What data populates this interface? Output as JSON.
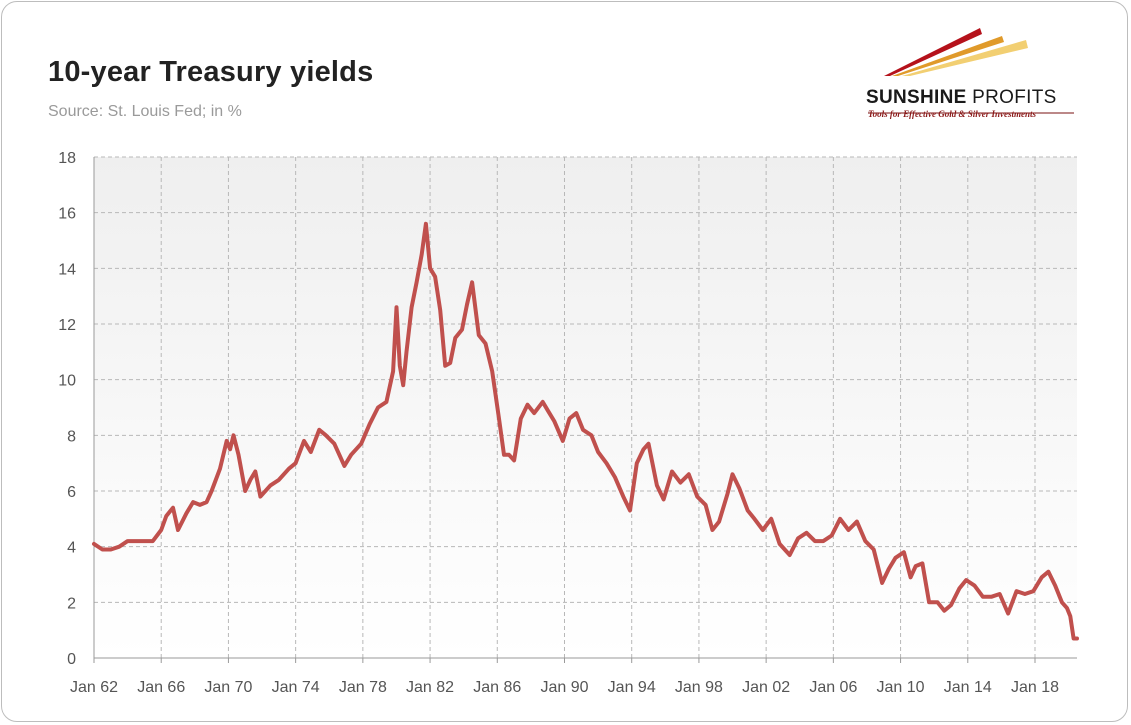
{
  "chart_data": {
    "type": "line",
    "title": "10-year Treasury yields",
    "subtitle": "Source: St. Louis Fed; in %",
    "xlabel": "",
    "ylabel": "",
    "ylim": [
      0,
      18
    ],
    "yticks": [
      0,
      2,
      4,
      6,
      8,
      10,
      12,
      14,
      16,
      18
    ],
    "x_range": [
      1962.0,
      2020.5
    ],
    "xticks": [
      {
        "x": 1962,
        "label": "Jan 62"
      },
      {
        "x": 1966,
        "label": "Jan 66"
      },
      {
        "x": 1970,
        "label": "Jan 70"
      },
      {
        "x": 1974,
        "label": "Jan 74"
      },
      {
        "x": 1978,
        "label": "Jan 78"
      },
      {
        "x": 1982,
        "label": "Jan 82"
      },
      {
        "x": 1986,
        "label": "Jan 86"
      },
      {
        "x": 1990,
        "label": "Jan 90"
      },
      {
        "x": 1994,
        "label": "Jan 94"
      },
      {
        "x": 1998,
        "label": "Jan 98"
      },
      {
        "x": 2002,
        "label": "Jan 02"
      },
      {
        "x": 2006,
        "label": "Jan 06"
      },
      {
        "x": 2010,
        "label": "Jan 10"
      },
      {
        "x": 2014,
        "label": "Jan 14"
      },
      {
        "x": 2018,
        "label": "Jan 18"
      }
    ],
    "grid": true,
    "legend": "none",
    "series": [
      {
        "color": "#c0504d",
        "x": [
          1962.0,
          1962.5,
          1963.0,
          1963.5,
          1964.0,
          1964.5,
          1965.0,
          1965.5,
          1966.0,
          1966.3,
          1966.7,
          1967.0,
          1967.5,
          1967.9,
          1968.3,
          1968.7,
          1969.0,
          1969.5,
          1969.9,
          1970.1,
          1970.3,
          1970.6,
          1971.0,
          1971.3,
          1971.6,
          1971.9,
          1972.5,
          1973.0,
          1973.6,
          1974.0,
          1974.5,
          1974.9,
          1975.4,
          1975.8,
          1976.3,
          1976.9,
          1977.3,
          1977.9,
          1978.4,
          1978.9,
          1979.4,
          1979.8,
          1980.0,
          1980.2,
          1980.4,
          1980.6,
          1980.9,
          1981.2,
          1981.5,
          1981.75,
          1982.0,
          1982.3,
          1982.6,
          1982.9,
          1983.2,
          1983.5,
          1983.9,
          1984.2,
          1984.5,
          1984.9,
          1985.3,
          1985.7,
          1986.1,
          1986.4,
          1986.7,
          1987.0,
          1987.4,
          1987.8,
          1988.2,
          1988.7,
          1989.0,
          1989.4,
          1989.9,
          1990.3,
          1990.7,
          1991.1,
          1991.6,
          1992.0,
          1992.5,
          1993.0,
          1993.5,
          1993.9,
          1994.3,
          1994.7,
          1995.0,
          1995.5,
          1995.9,
          1996.4,
          1996.9,
          1997.4,
          1997.9,
          1998.4,
          1998.8,
          1999.2,
          1999.7,
          2000.0,
          2000.4,
          2000.9,
          2001.3,
          2001.8,
          2002.3,
          2002.8,
          2003.4,
          2003.9,
          2004.4,
          2004.9,
          2005.4,
          2005.9,
          2006.4,
          2006.9,
          2007.4,
          2007.9,
          2008.4,
          2008.9,
          2009.3,
          2009.7,
          2010.2,
          2010.6,
          2010.9,
          2011.3,
          2011.7,
          2012.2,
          2012.6,
          2013.0,
          2013.5,
          2013.9,
          2014.4,
          2014.9,
          2015.4,
          2015.9,
          2016.4,
          2016.9,
          2017.4,
          2017.9,
          2018.4,
          2018.8,
          2019.2,
          2019.6,
          2019.9,
          2020.1,
          2020.3,
          2020.5
        ],
        "y": [
          4.1,
          3.9,
          3.9,
          4.0,
          4.2,
          4.2,
          4.2,
          4.2,
          4.6,
          5.1,
          5.4,
          4.6,
          5.2,
          5.6,
          5.5,
          5.6,
          6.0,
          6.8,
          7.8,
          7.5,
          8.0,
          7.3,
          6.0,
          6.4,
          6.7,
          5.8,
          6.2,
          6.4,
          6.8,
          7.0,
          7.8,
          7.4,
          8.2,
          8.0,
          7.7,
          6.9,
          7.3,
          7.7,
          8.4,
          9.0,
          9.2,
          10.3,
          12.6,
          10.5,
          9.8,
          11.0,
          12.6,
          13.5,
          14.5,
          15.6,
          14.0,
          13.7,
          12.5,
          10.5,
          10.6,
          11.5,
          11.8,
          12.7,
          13.5,
          11.6,
          11.3,
          10.3,
          8.6,
          7.3,
          7.3,
          7.1,
          8.6,
          9.1,
          8.8,
          9.2,
          8.9,
          8.5,
          7.8,
          8.6,
          8.8,
          8.2,
          8.0,
          7.4,
          7.0,
          6.5,
          5.8,
          5.3,
          7.0,
          7.5,
          7.7,
          6.2,
          5.7,
          6.7,
          6.3,
          6.6,
          5.8,
          5.5,
          4.6,
          4.9,
          5.9,
          6.6,
          6.1,
          5.3,
          5.0,
          4.6,
          5.0,
          4.1,
          3.7,
          4.3,
          4.5,
          4.2,
          4.2,
          4.4,
          5.0,
          4.6,
          4.9,
          4.2,
          3.9,
          2.7,
          3.2,
          3.6,
          3.8,
          2.9,
          3.3,
          3.4,
          2.0,
          2.0,
          1.7,
          1.9,
          2.5,
          2.8,
          2.6,
          2.2,
          2.2,
          2.3,
          1.6,
          2.4,
          2.3,
          2.4,
          2.9,
          3.1,
          2.6,
          2.0,
          1.8,
          1.5,
          0.7,
          0.7
        ]
      }
    ]
  }
}
